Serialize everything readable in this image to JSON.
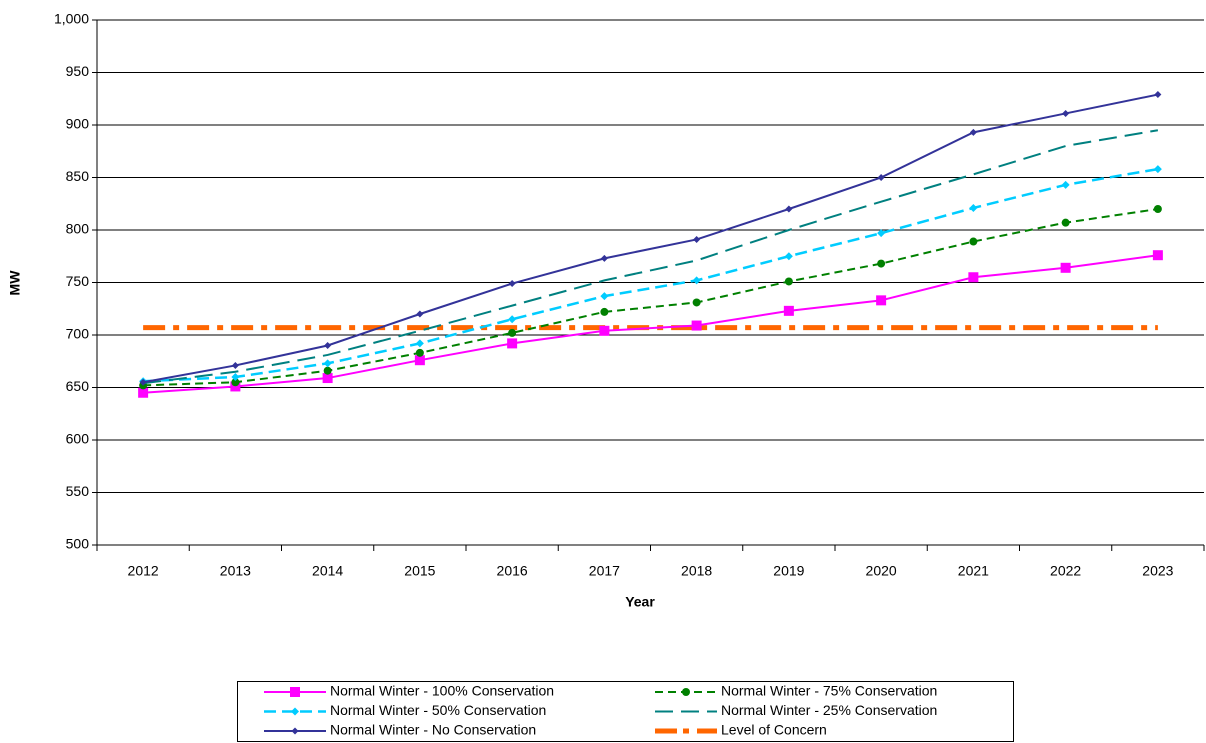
{
  "chart_data": {
    "type": "line",
    "x_label": "Year",
    "y_label": "MW",
    "categories": [
      "2012",
      "2013",
      "2014",
      "2015",
      "2016",
      "2017",
      "2018",
      "2019",
      "2020",
      "2021",
      "2022",
      "2023"
    ],
    "series": [
      {
        "name": "Normal Winter - 100% Conservation",
        "color": "#ff00ff",
        "values": [
          645,
          651,
          659,
          676,
          692,
          704,
          709,
          723,
          733,
          755,
          764,
          776
        ]
      },
      {
        "name": "Normal Winter - 75% Conservation",
        "color": "#008000",
        "values": [
          652,
          655,
          666,
          683,
          702,
          722,
          731,
          751,
          768,
          789,
          807,
          820
        ]
      },
      {
        "name": "Normal Winter - 50% Conservation",
        "color": "#00ccff",
        "values": [
          656,
          660,
          673,
          692,
          715,
          737,
          752,
          775,
          797,
          821,
          843,
          858
        ]
      },
      {
        "name": "Normal Winter - 25% Conservation",
        "color": "#008080",
        "values": [
          654,
          665,
          681,
          704,
          728,
          752,
          771,
          800,
          827,
          853,
          880,
          895
        ]
      },
      {
        "name": "Normal Winter - No Conservation",
        "color": "#333399",
        "values": [
          655,
          671,
          690,
          720,
          749,
          773,
          791,
          820,
          850,
          893,
          911,
          929
        ]
      },
      {
        "name": "Level of Concern",
        "color": "#ff6600",
        "values": [
          707,
          707,
          707,
          707,
          707,
          707,
          707,
          707,
          707,
          707,
          707,
          707
        ]
      }
    ],
    "ylim": [
      500,
      1000
    ],
    "yticks": [
      500,
      550,
      600,
      650,
      700,
      750,
      800,
      850,
      900,
      950,
      {
        "value": 1000,
        "label": "1,000"
      }
    ],
    "grid": true,
    "legend": "bottom"
  }
}
